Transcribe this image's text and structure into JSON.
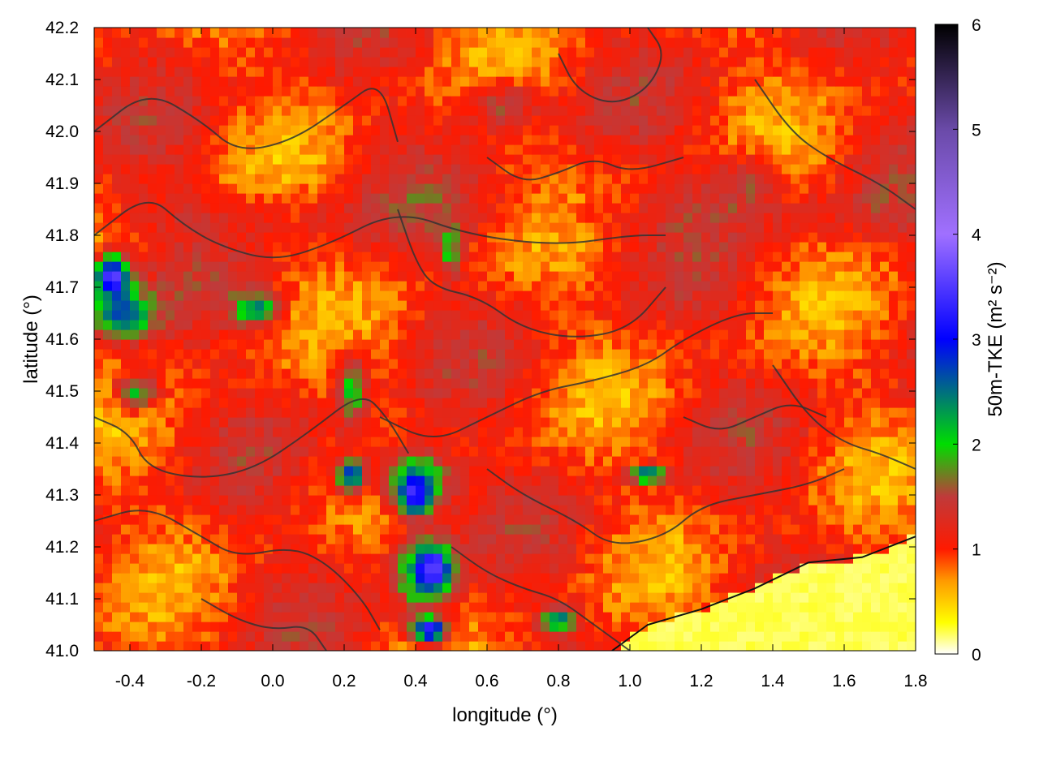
{
  "chart_data": {
    "type": "heatmap",
    "title": "",
    "xlabel": "longitude (°)",
    "ylabel": "latitude (°)",
    "xlim": [
      -0.5,
      1.8
    ],
    "ylim": [
      41.0,
      42.2
    ],
    "x_ticks": [
      {
        "value": -0.4,
        "label": "-0.4"
      },
      {
        "value": -0.2,
        "label": "-0.2"
      },
      {
        "value": 0.0,
        "label": "0.0"
      },
      {
        "value": 0.2,
        "label": "0.2"
      },
      {
        "value": 0.4,
        "label": "0.4"
      },
      {
        "value": 0.6,
        "label": "0.6"
      },
      {
        "value": 0.8,
        "label": "0.8"
      },
      {
        "value": 1.0,
        "label": "1.0"
      },
      {
        "value": 1.2,
        "label": "1.2"
      },
      {
        "value": 1.4,
        "label": "1.4"
      },
      {
        "value": 1.6,
        "label": "1.6"
      },
      {
        "value": 1.8,
        "label": "1.8"
      }
    ],
    "y_ticks": [
      {
        "value": 41.0,
        "label": "41.0"
      },
      {
        "value": 41.1,
        "label": "41.1"
      },
      {
        "value": 41.2,
        "label": "41.2"
      },
      {
        "value": 41.3,
        "label": "41.3"
      },
      {
        "value": 41.4,
        "label": "41.4"
      },
      {
        "value": 41.5,
        "label": "41.5"
      },
      {
        "value": 41.6,
        "label": "41.6"
      },
      {
        "value": 41.7,
        "label": "41.7"
      },
      {
        "value": 41.8,
        "label": "41.8"
      },
      {
        "value": 41.9,
        "label": "41.9"
      },
      {
        "value": 42.0,
        "label": "42.0"
      },
      {
        "value": 42.1,
        "label": "42.1"
      },
      {
        "value": 42.2,
        "label": "42.2"
      }
    ],
    "colorbar": {
      "label": "50m-TKE (m² s⁻²)",
      "range": [
        0,
        6
      ],
      "ticks": [
        {
          "value": 0,
          "label": "0"
        },
        {
          "value": 1,
          "label": "1"
        },
        {
          "value": 2,
          "label": "2"
        },
        {
          "value": 3,
          "label": "3"
        },
        {
          "value": 4,
          "label": "4"
        },
        {
          "value": 5,
          "label": "5"
        },
        {
          "value": 6,
          "label": "6"
        }
      ],
      "stops": [
        {
          "value": 0.0,
          "color": "#ffffff"
        },
        {
          "value": 0.3,
          "color": "#ffff00"
        },
        {
          "value": 0.7,
          "color": "#ff9900"
        },
        {
          "value": 1.0,
          "color": "#ff1a00"
        },
        {
          "value": 1.5,
          "color": "#c03a3a"
        },
        {
          "value": 2.0,
          "color": "#00dd00"
        },
        {
          "value": 3.0,
          "color": "#0000ff"
        },
        {
          "value": 4.0,
          "color": "#a070ff"
        },
        {
          "value": 5.0,
          "color": "#6a4aa8"
        },
        {
          "value": 6.0,
          "color": "#000000"
        }
      ]
    },
    "features": [
      {
        "type": "blob",
        "lon": -0.42,
        "lat": 41.65,
        "sx": 0.09,
        "sy": 0.045,
        "tke": 2.6
      },
      {
        "type": "blob",
        "lon": -0.45,
        "lat": 41.72,
        "sx": 0.05,
        "sy": 0.04,
        "tke": 3.6
      },
      {
        "type": "blob",
        "lon": -0.05,
        "lat": 41.66,
        "sx": 0.06,
        "sy": 0.03,
        "tke": 2.4
      },
      {
        "type": "blob",
        "lon": -0.38,
        "lat": 41.5,
        "sx": 0.06,
        "sy": 0.035,
        "tke": 2.0
      },
      {
        "type": "blob",
        "lon": 0.22,
        "lat": 41.5,
        "sx": 0.04,
        "sy": 0.07,
        "tke": 2.0
      },
      {
        "type": "blob",
        "lon": 0.5,
        "lat": 41.77,
        "sx": 0.03,
        "sy": 0.05,
        "tke": 1.95
      },
      {
        "type": "blob",
        "lon": 0.4,
        "lat": 41.33,
        "sx": 0.1,
        "sy": 0.06,
        "tke": 2.3
      },
      {
        "type": "blob",
        "lon": 0.4,
        "lat": 41.3,
        "sx": 0.04,
        "sy": 0.035,
        "tke": 3.5
      },
      {
        "type": "blob",
        "lon": 0.22,
        "lat": 41.34,
        "sx": 0.04,
        "sy": 0.03,
        "tke": 2.9
      },
      {
        "type": "blob",
        "lon": 0.42,
        "lat": 41.15,
        "sx": 0.08,
        "sy": 0.07,
        "tke": 2.4
      },
      {
        "type": "blob",
        "lon": 0.45,
        "lat": 41.16,
        "sx": 0.04,
        "sy": 0.035,
        "tke": 3.8
      },
      {
        "type": "blob",
        "lon": 0.44,
        "lat": 41.04,
        "sx": 0.05,
        "sy": 0.025,
        "tke": 3.3
      },
      {
        "type": "blob",
        "lon": 1.05,
        "lat": 41.34,
        "sx": 0.05,
        "sy": 0.015,
        "tke": 2.9
      },
      {
        "type": "blob",
        "lon": 0.8,
        "lat": 41.06,
        "sx": 0.05,
        "sy": 0.02,
        "tke": 2.6
      },
      {
        "type": "blob",
        "lon": 1.3,
        "lat": 41.9,
        "sx": 0.12,
        "sy": 0.06,
        "tke": 1.45
      },
      {
        "type": "blob",
        "lon": 0.65,
        "lat": 42.05,
        "sx": 0.1,
        "sy": 0.05,
        "tke": 1.5
      },
      {
        "type": "band",
        "lat": 41.84,
        "width": 0.05,
        "tke": 1.3
      }
    ],
    "coast": [
      [
        0.95,
        41.0
      ],
      [
        1.05,
        41.05
      ],
      [
        1.2,
        41.08
      ],
      [
        1.35,
        41.12
      ],
      [
        1.5,
        41.17
      ],
      [
        1.65,
        41.18
      ],
      [
        1.8,
        41.22
      ]
    ],
    "contours": [
      [
        [
          -0.5,
          42.0
        ],
        [
          -0.35,
          42.08
        ],
        [
          -0.2,
          42.02
        ],
        [
          -0.1,
          41.96
        ],
        [
          0.05,
          41.98
        ],
        [
          0.2,
          42.05
        ],
        [
          0.3,
          42.1
        ],
        [
          0.35,
          41.98
        ]
      ],
      [
        [
          -0.5,
          41.8
        ],
        [
          -0.35,
          41.88
        ],
        [
          -0.25,
          41.82
        ],
        [
          -0.15,
          41.78
        ],
        [
          0.0,
          41.75
        ],
        [
          0.15,
          41.78
        ],
        [
          0.35,
          41.85
        ],
        [
          0.55,
          41.8
        ],
        [
          0.8,
          41.78
        ],
        [
          1.0,
          41.8
        ],
        [
          1.1,
          41.8
        ]
      ],
      [
        [
          -0.5,
          41.45
        ],
        [
          -0.4,
          41.42
        ],
        [
          -0.35,
          41.35
        ],
        [
          -0.2,
          41.33
        ],
        [
          -0.05,
          41.35
        ],
        [
          0.1,
          41.42
        ],
        [
          0.25,
          41.5
        ],
        [
          0.32,
          41.45
        ],
        [
          0.38,
          41.38
        ]
      ],
      [
        [
          0.35,
          41.85
        ],
        [
          0.4,
          41.75
        ],
        [
          0.45,
          41.7
        ],
        [
          0.58,
          41.68
        ],
        [
          0.7,
          41.62
        ],
        [
          0.85,
          41.6
        ],
        [
          1.0,
          41.62
        ],
        [
          1.1,
          41.7
        ]
      ],
      [
        [
          0.3,
          41.45
        ],
        [
          0.45,
          41.4
        ],
        [
          0.6,
          41.45
        ],
        [
          0.75,
          41.5
        ],
        [
          0.9,
          41.52
        ],
        [
          1.05,
          41.55
        ],
        [
          1.15,
          41.6
        ],
        [
          1.3,
          41.65
        ],
        [
          1.4,
          41.65
        ]
      ],
      [
        [
          0.6,
          41.35
        ],
        [
          0.7,
          41.3
        ],
        [
          0.85,
          41.25
        ],
        [
          0.95,
          41.2
        ],
        [
          1.1,
          41.22
        ],
        [
          1.2,
          41.28
        ],
        [
          1.35,
          41.3
        ],
        [
          1.5,
          41.32
        ],
        [
          1.6,
          41.35
        ]
      ],
      [
        [
          0.5,
          41.2
        ],
        [
          0.6,
          41.15
        ],
        [
          0.7,
          41.12
        ],
        [
          0.8,
          41.1
        ],
        [
          0.9,
          41.05
        ],
        [
          1.0,
          41.0
        ]
      ],
      [
        [
          -0.5,
          41.25
        ],
        [
          -0.35,
          41.28
        ],
        [
          -0.2,
          41.22
        ],
        [
          -0.1,
          41.18
        ],
        [
          0.05,
          41.2
        ],
        [
          0.15,
          41.17
        ],
        [
          0.25,
          41.1
        ],
        [
          0.3,
          41.04
        ]
      ],
      [
        [
          0.8,
          42.15
        ],
        [
          0.85,
          42.08
        ],
        [
          0.95,
          42.05
        ],
        [
          1.05,
          42.08
        ],
        [
          1.1,
          42.15
        ],
        [
          1.05,
          42.2
        ]
      ],
      [
        [
          1.35,
          42.1
        ],
        [
          1.45,
          42.0
        ],
        [
          1.55,
          41.95
        ],
        [
          1.7,
          41.9
        ],
        [
          1.8,
          41.85
        ]
      ],
      [
        [
          1.4,
          41.55
        ],
        [
          1.5,
          41.45
        ],
        [
          1.6,
          41.4
        ],
        [
          1.7,
          41.38
        ],
        [
          1.8,
          41.35
        ]
      ],
      [
        [
          -0.2,
          41.1
        ],
        [
          -0.1,
          41.06
        ],
        [
          0.0,
          41.04
        ],
        [
          0.1,
          41.05
        ],
        [
          0.15,
          41.0
        ]
      ],
      [
        [
          0.6,
          41.95
        ],
        [
          0.7,
          41.9
        ],
        [
          0.8,
          41.92
        ],
        [
          0.9,
          41.95
        ],
        [
          1.0,
          41.92
        ],
        [
          1.15,
          41.95
        ]
      ],
      [
        [
          1.15,
          41.45
        ],
        [
          1.25,
          41.42
        ],
        [
          1.35,
          41.45
        ],
        [
          1.45,
          41.48
        ],
        [
          1.55,
          41.45
        ]
      ]
    ],
    "grid": false,
    "legend": "none"
  }
}
